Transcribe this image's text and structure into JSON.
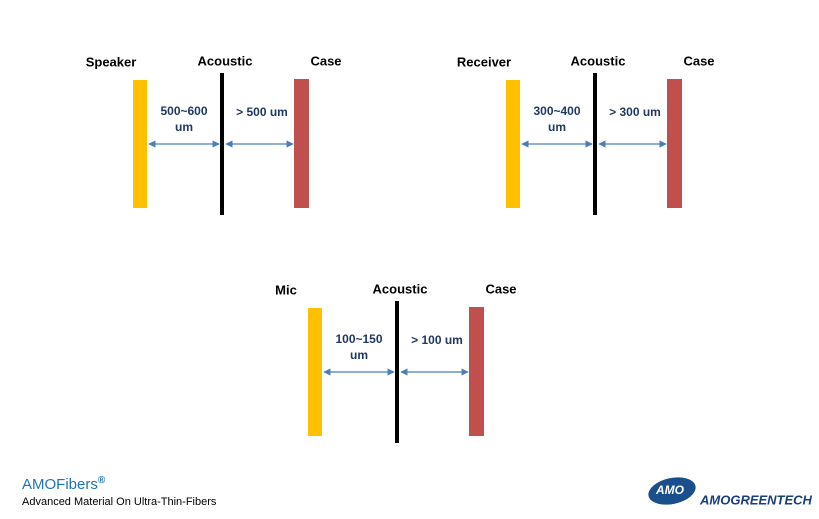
{
  "diagrams": [
    {
      "left": "Speaker",
      "middle": "Acoustic",
      "right": "Case",
      "gap1": [
        "500~600",
        "um"
      ],
      "gap2": "> 500 um"
    },
    {
      "left": "Receiver",
      "middle": "Acoustic",
      "right": "Case",
      "gap1": [
        "300~400",
        "um"
      ],
      "gap2": "> 300 um"
    },
    {
      "left": "Mic",
      "middle": "Acoustic",
      "right": "Case",
      "gap1": [
        "100~150",
        "um"
      ],
      "gap2": "> 100 um"
    }
  ],
  "footer": {
    "brand": "AMOFibers",
    "mark": "®",
    "tagline": "Advanced Material On Ultra-Thin-Fibers"
  },
  "logo": {
    "badge": "AMO",
    "name": "AMOGREENTECH"
  }
}
